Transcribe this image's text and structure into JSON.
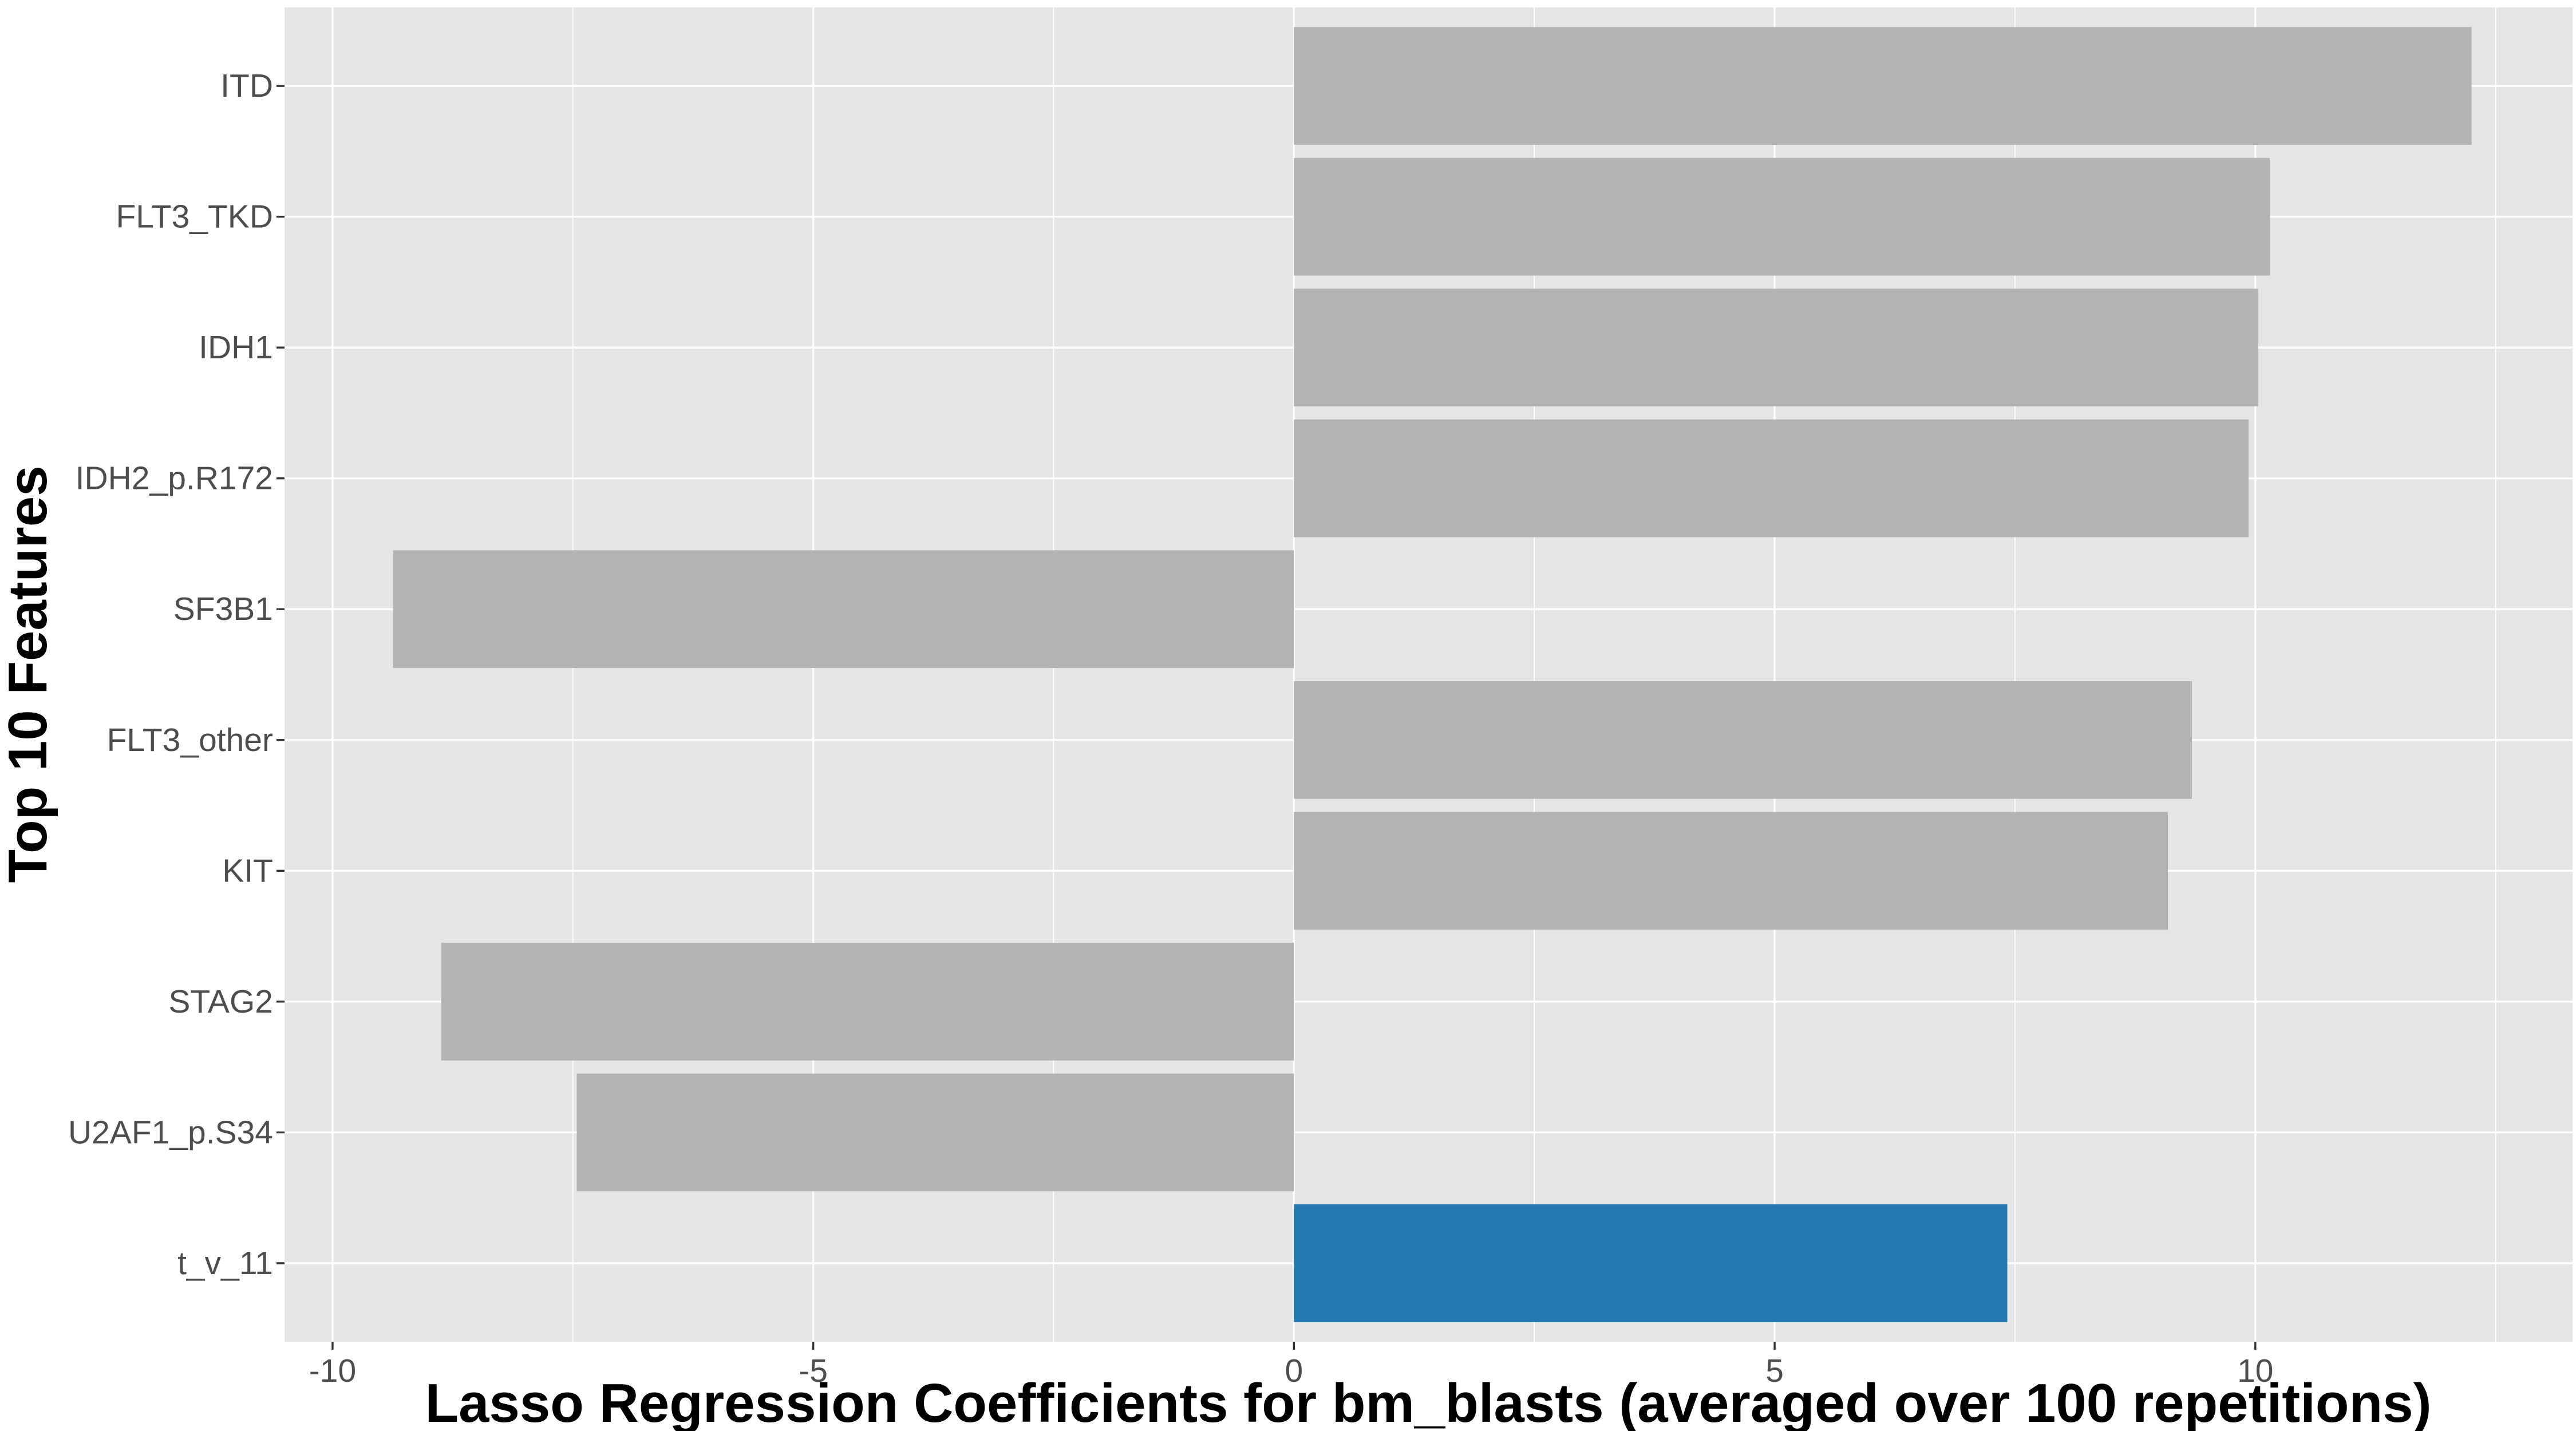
{
  "chart_data": {
    "type": "bar",
    "orientation": "horizontal",
    "xlabel": "Lasso Regression Coefficients for bm_blasts (averaged over 100 repetitions)",
    "ylabel": "Top 10 Features",
    "xlim": [
      -10.5,
      13.3
    ],
    "xticks": [
      -10,
      -5,
      0,
      5,
      10
    ],
    "xtick_labels": [
      "-10",
      "-5",
      "0",
      "5",
      "10"
    ],
    "grid": true,
    "legend": "none",
    "categories": [
      "ITD",
      "FLT3_TKD",
      "IDH1",
      "IDH2_p.R172",
      "SF3B1",
      "FLT3_other",
      "KIT",
      "STAG2",
      "U2AF1_p.S34",
      "t_v_11"
    ],
    "values": [
      12.25,
      10.15,
      10.03,
      9.93,
      -9.37,
      9.34,
      9.09,
      -8.87,
      -7.46,
      7.42
    ],
    "bar_colors": [
      "#b3b3b3",
      "#b3b3b3",
      "#b3b3b3",
      "#b3b3b3",
      "#b3b3b3",
      "#b3b3b3",
      "#b3b3b3",
      "#b3b3b3",
      "#b3b3b3",
      "#2378b0"
    ],
    "panel_background": "#e5e5e5",
    "grid_color": "#ffffff"
  }
}
